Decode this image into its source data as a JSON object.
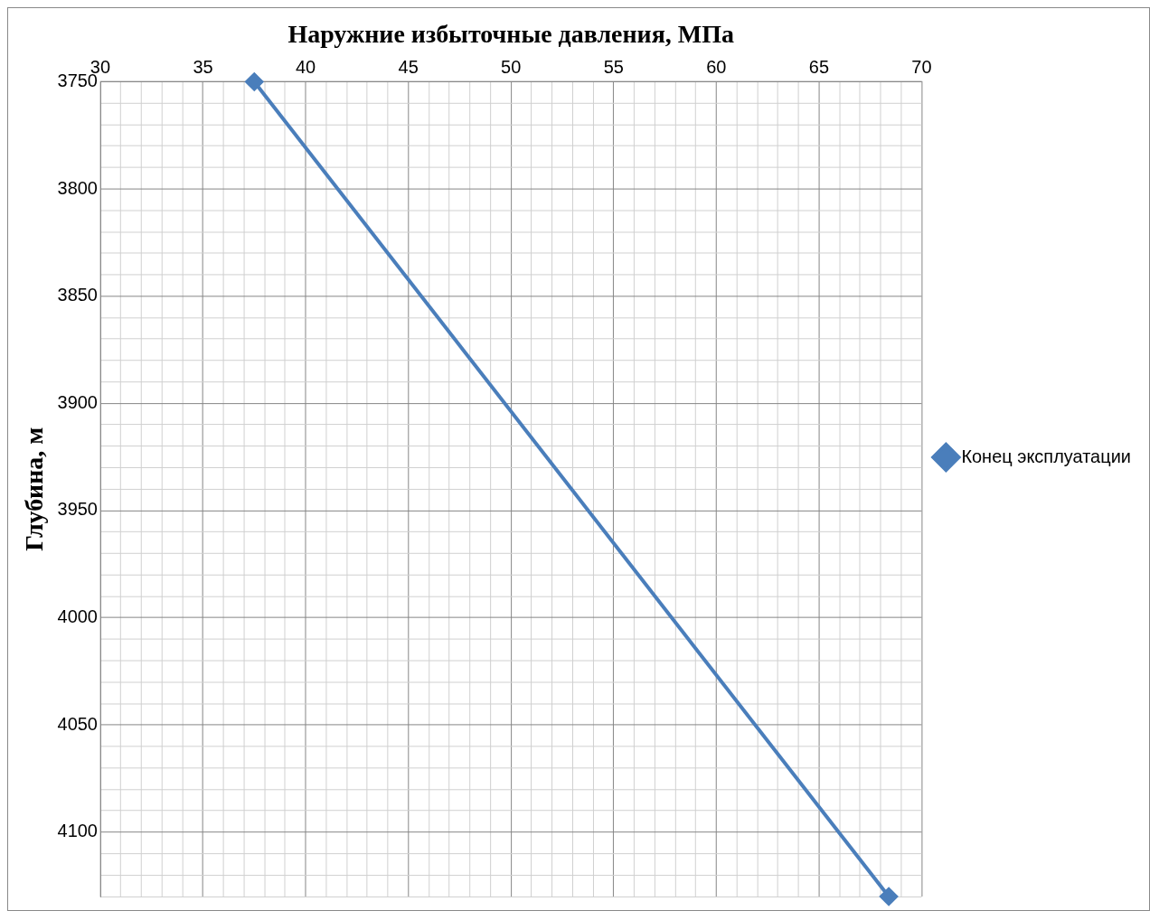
{
  "chart_data": {
    "type": "line",
    "xlabel": "Наружние избыточные давления, МПа",
    "ylabel": "Глубина, м",
    "x": [
      37.5,
      68.4
    ],
    "series": [
      {
        "name": "Конец эксплуатации",
        "color": "#4a7ebb",
        "values": [
          3750,
          4130
        ]
      }
    ],
    "xlim": [
      30,
      70
    ],
    "xticks": [
      30,
      {
        "value": 31,
        "label": null
      },
      {
        "value": 32,
        "label": null
      },
      {
        "value": 33,
        "label": null
      },
      {
        "value": 34,
        "label": null
      },
      35,
      {
        "value": 36,
        "label": null
      },
      {
        "value": 37,
        "label": null
      },
      {
        "value": 38,
        "label": null
      },
      {
        "value": 39,
        "label": null
      },
      40,
      {
        "value": 41,
        "label": null
      },
      {
        "value": 42,
        "label": null
      },
      {
        "value": 43,
        "label": null
      },
      {
        "value": 44,
        "label": null
      },
      45,
      {
        "value": 46,
        "label": null
      },
      {
        "value": 47,
        "label": null
      },
      {
        "value": 48,
        "label": null
      },
      {
        "value": 49,
        "label": null
      },
      50,
      {
        "value": 51,
        "label": null
      },
      {
        "value": 52,
        "label": null
      },
      {
        "value": 53,
        "label": null
      },
      {
        "value": 54,
        "label": null
      },
      55,
      {
        "value": 56,
        "label": null
      },
      {
        "value": 57,
        "label": null
      },
      {
        "value": 58,
        "label": null
      },
      {
        "value": 59,
        "label": null
      },
      60,
      {
        "value": 61,
        "label": null
      },
      {
        "value": 62,
        "label": null
      },
      {
        "value": 63,
        "label": null
      },
      {
        "value": 64,
        "label": null
      },
      65,
      {
        "value": 66,
        "label": null
      },
      {
        "value": 67,
        "label": null
      },
      {
        "value": 68,
        "label": null
      },
      {
        "value": 69,
        "label": null
      },
      70
    ],
    "ylim": [
      4130,
      3750
    ],
    "yticks": [
      3750,
      {
        "value": 3760,
        "label": null
      },
      {
        "value": 3770,
        "label": null
      },
      {
        "value": 3780,
        "label": null
      },
      {
        "value": 3790,
        "label": null
      },
      3800,
      {
        "value": 3810,
        "label": null
      },
      {
        "value": 3820,
        "label": null
      },
      {
        "value": 3830,
        "label": null
      },
      {
        "value": 3840,
        "label": null
      },
      3850,
      {
        "value": 3860,
        "label": null
      },
      {
        "value": 3870,
        "label": null
      },
      {
        "value": 3880,
        "label": null
      },
      {
        "value": 3890,
        "label": null
      },
      3900,
      {
        "value": 3910,
        "label": null
      },
      {
        "value": 3920,
        "label": null
      },
      {
        "value": 3930,
        "label": null
      },
      {
        "value": 3940,
        "label": null
      },
      3950,
      {
        "value": 3960,
        "label": null
      },
      {
        "value": 3970,
        "label": null
      },
      {
        "value": 3980,
        "label": null
      },
      {
        "value": 3990,
        "label": null
      },
      4000,
      {
        "value": 4010,
        "label": null
      },
      {
        "value": 4020,
        "label": null
      },
      {
        "value": 4030,
        "label": null
      },
      {
        "value": 4040,
        "label": null
      },
      4050,
      {
        "value": 4060,
        "label": null
      },
      {
        "value": 4070,
        "label": null
      },
      {
        "value": 4080,
        "label": null
      },
      {
        "value": 4090,
        "label": null
      },
      4100,
      {
        "value": 4110,
        "label": null
      },
      {
        "value": 4120,
        "label": null
      },
      {
        "value": 4130,
        "label": null
      }
    ],
    "grid": true,
    "legend": "right",
    "marker": "diamond",
    "line_style": "solid"
  }
}
